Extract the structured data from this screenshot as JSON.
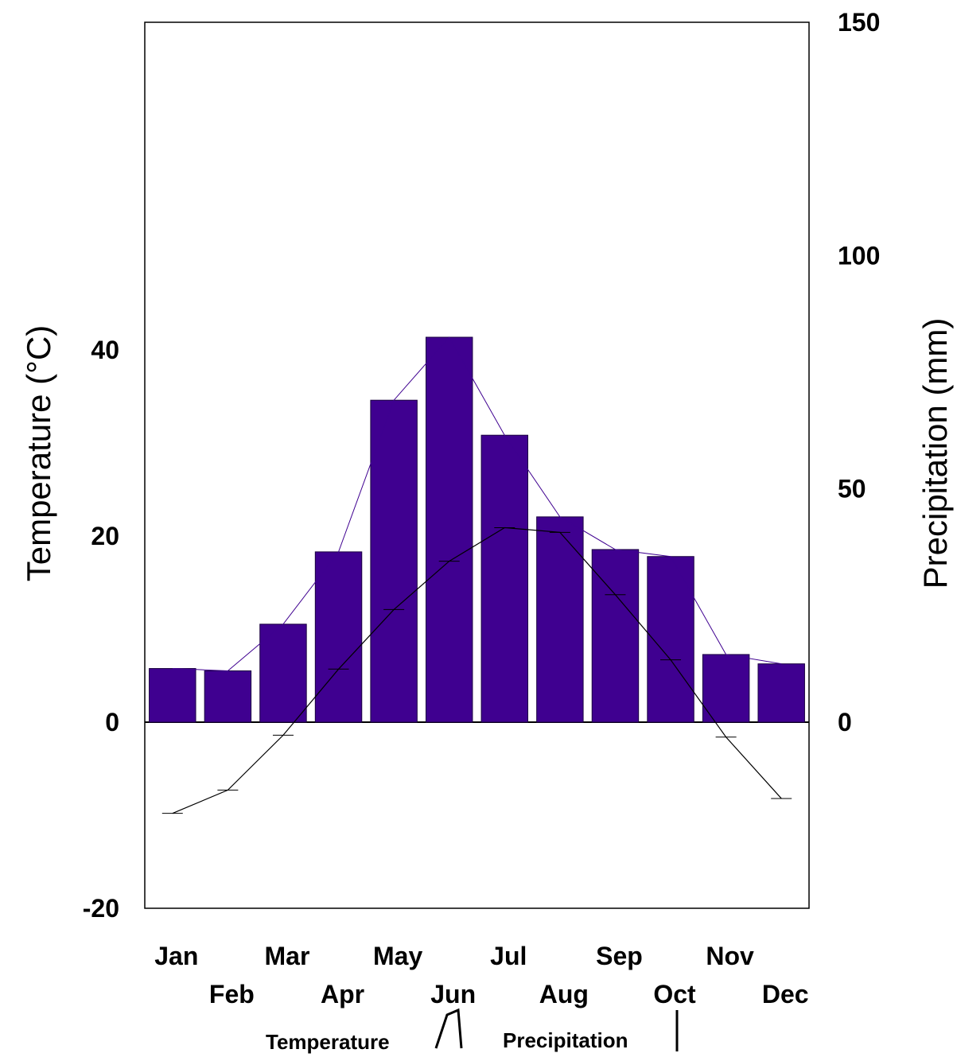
{
  "chart_data": {
    "type": "bar",
    "categories": [
      "Jan",
      "Feb",
      "Mar",
      "Apr",
      "May",
      "Jun",
      "Jul",
      "Aug",
      "Sep",
      "Oct",
      "Nov",
      "Dec"
    ],
    "series": [
      {
        "name": "Precipitation",
        "axis": "right",
        "kind": "bar",
        "values": [
          11.5,
          11,
          21,
          36.5,
          69,
          82.5,
          61.5,
          44,
          37,
          35.5,
          14.5,
          12.5
        ]
      },
      {
        "name": "Temperature",
        "axis": "left",
        "kind": "line",
        "values": [
          -9.8,
          -7.3,
          -1.4,
          5.7,
          12.1,
          17.3,
          20.9,
          20.4,
          13.7,
          6.7,
          -1.6,
          -8.2
        ]
      }
    ],
    "y_left": {
      "label": "Temperature (°C)",
      "ticks": [
        "40",
        "20",
        "0",
        "-20"
      ],
      "tick_values": [
        40,
        20,
        0,
        -20
      ],
      "range": [
        -20,
        55
      ]
    },
    "y_right": {
      "label": "Precipitation (mm)",
      "ticks": [
        "150",
        "100",
        "50",
        "0"
      ],
      "tick_values": [
        150,
        100,
        50,
        0
      ],
      "range": [
        0,
        150
      ]
    },
    "legend": {
      "temperature_label": "Temperature",
      "precipitation_label": "Precipitation",
      "placement": "bottom"
    },
    "grid": false,
    "colors": {
      "bar": "#3f0090",
      "bar_outline": "#1a0040",
      "temp_line": "#000000",
      "bar_top_line": "#3f0090"
    }
  }
}
